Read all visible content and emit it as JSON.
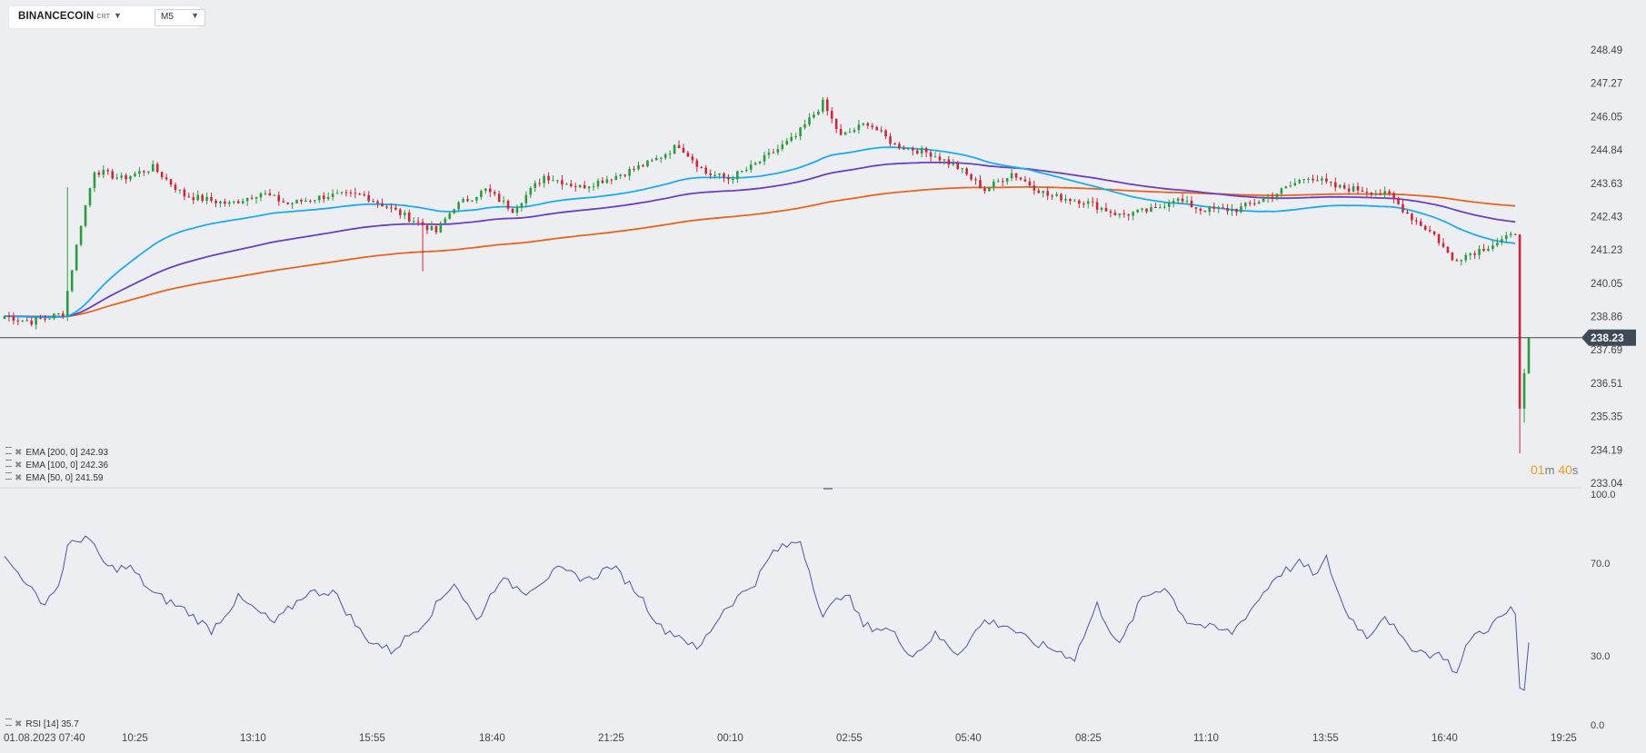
{
  "toolbar": {
    "symbol": "BINANCECOIN",
    "symbol_type": "CRT",
    "timeframe": "M5",
    "dropdown_icon": "caret-down-icon"
  },
  "countdown": {
    "minutes": "01",
    "min_unit": "m",
    "seconds": "40",
    "sec_unit": "s"
  },
  "indicators": [
    {
      "label": "EMA [200, 0]",
      "value": "242.93",
      "color": "#e8641f"
    },
    {
      "label": "EMA [100, 0]",
      "value": "242.36",
      "color": "#6a3fc0"
    },
    {
      "label": "EMA [50, 0]",
      "value": "241.59",
      "color": "#1eaaeb"
    }
  ],
  "rsi_legend": {
    "label": "RSI [14]",
    "value": "35.7",
    "color": "#4a55a8"
  },
  "colors": {
    "up": "#2e9b3e",
    "down": "#c8283a",
    "background": "#eceef1",
    "price_badge": "#3e4a55"
  },
  "chart_data": [
    {
      "type": "candlestick",
      "title": "",
      "ylim": [
        233.04,
        248.49
      ],
      "y_ticks": [
        "248.49",
        "247.27",
        "246.05",
        "244.84",
        "243.63",
        "242.43",
        "241.23",
        "240.05",
        "238.86",
        "237.69",
        "236.51",
        "235.35",
        "234.19",
        "233.04"
      ],
      "x_ticks": [
        "01.08.2023  07:40",
        "10:25",
        "13:10",
        "15:55",
        "18:40",
        "21:25",
        "00:10",
        "02:55",
        "05:40",
        "08:25",
        "11:10",
        "13:55",
        "16:40",
        "19:25"
      ],
      "current_price": "238.23",
      "ohlc_anchors": [
        {
          "t": 0,
          "c": 239.0
        },
        {
          "t": 6,
          "c": 238.8
        },
        {
          "t": 13,
          "c": 239.1
        },
        {
          "t": 17,
          "c": 242.3
        },
        {
          "t": 20,
          "c": 244.2
        },
        {
          "t": 26,
          "c": 243.9
        },
        {
          "t": 33,
          "c": 244.3
        },
        {
          "t": 40,
          "c": 243.3
        },
        {
          "t": 50,
          "c": 243.0
        },
        {
          "t": 57,
          "c": 243.4
        },
        {
          "t": 63,
          "c": 243.0
        },
        {
          "t": 72,
          "c": 243.3
        },
        {
          "t": 80,
          "c": 243.3
        },
        {
          "t": 90,
          "c": 242.5
        },
        {
          "t": 96,
          "c": 242.0
        },
        {
          "t": 100,
          "c": 242.9
        },
        {
          "t": 107,
          "c": 243.5
        },
        {
          "t": 113,
          "c": 242.8
        },
        {
          "t": 120,
          "c": 244.0
        },
        {
          "t": 128,
          "c": 243.6
        },
        {
          "t": 136,
          "c": 244.0
        },
        {
          "t": 144,
          "c": 244.5
        },
        {
          "t": 150,
          "c": 245.1
        },
        {
          "t": 156,
          "c": 244.1
        },
        {
          "t": 161,
          "c": 243.9
        },
        {
          "t": 166,
          "c": 244.3
        },
        {
          "t": 176,
          "c": 245.4
        },
        {
          "t": 182,
          "c": 246.6
        },
        {
          "t": 186,
          "c": 245.4
        },
        {
          "t": 192,
          "c": 245.9
        },
        {
          "t": 198,
          "c": 245.1
        },
        {
          "t": 206,
          "c": 244.8
        },
        {
          "t": 212,
          "c": 244.3
        },
        {
          "t": 218,
          "c": 243.5
        },
        {
          "t": 224,
          "c": 244.1
        },
        {
          "t": 232,
          "c": 243.3
        },
        {
          "t": 240,
          "c": 243.1
        },
        {
          "t": 248,
          "c": 242.6
        },
        {
          "t": 256,
          "c": 242.8
        },
        {
          "t": 260,
          "c": 243.2
        },
        {
          "t": 266,
          "c": 242.8
        },
        {
          "t": 274,
          "c": 242.8
        },
        {
          "t": 282,
          "c": 243.3
        },
        {
          "t": 290,
          "c": 244.0
        },
        {
          "t": 296,
          "c": 243.6
        },
        {
          "t": 302,
          "c": 243.5
        },
        {
          "t": 308,
          "c": 243.3
        },
        {
          "t": 313,
          "c": 242.5
        },
        {
          "t": 318,
          "c": 241.9
        },
        {
          "t": 322,
          "c": 241.0
        },
        {
          "t": 327,
          "c": 241.3
        },
        {
          "t": 333,
          "c": 241.7
        },
        {
          "t": 336,
          "c": 241.9
        },
        {
          "t": 337,
          "c": 235.7
        },
        {
          "t": 339,
          "c": 238.23
        }
      ],
      "ema_200_end": 242.93,
      "ema_100_end": 242.36,
      "ema_50_end": 241.59
    },
    {
      "type": "line",
      "title": "",
      "series": [
        {
          "name": "RSI [14]",
          "values": []
        }
      ],
      "ylim": [
        0,
        100
      ],
      "y_ticks": [
        "100.0",
        "70.0",
        "30.0",
        "0.0"
      ],
      "rsi_anchors": [
        {
          "t": 0,
          "v": 72
        },
        {
          "t": 5,
          "v": 62
        },
        {
          "t": 8,
          "v": 52
        },
        {
          "t": 12,
          "v": 60
        },
        {
          "t": 14,
          "v": 77
        },
        {
          "t": 18,
          "v": 82
        },
        {
          "t": 23,
          "v": 68
        },
        {
          "t": 28,
          "v": 68
        },
        {
          "t": 33,
          "v": 57
        },
        {
          "t": 40,
          "v": 50
        },
        {
          "t": 46,
          "v": 41
        },
        {
          "t": 52,
          "v": 55
        },
        {
          "t": 60,
          "v": 44
        },
        {
          "t": 67,
          "v": 57
        },
        {
          "t": 73,
          "v": 58
        },
        {
          "t": 80,
          "v": 38
        },
        {
          "t": 86,
          "v": 32
        },
        {
          "t": 93,
          "v": 44
        },
        {
          "t": 100,
          "v": 62
        },
        {
          "t": 105,
          "v": 45
        },
        {
          "t": 110,
          "v": 63
        },
        {
          "t": 116,
          "v": 58
        },
        {
          "t": 123,
          "v": 67
        },
        {
          "t": 130,
          "v": 63
        },
        {
          "t": 135,
          "v": 69
        },
        {
          "t": 141,
          "v": 57
        },
        {
          "t": 146,
          "v": 42
        },
        {
          "t": 151,
          "v": 38
        },
        {
          "t": 154,
          "v": 32
        },
        {
          "t": 160,
          "v": 50
        },
        {
          "t": 167,
          "v": 62
        },
        {
          "t": 171,
          "v": 75
        },
        {
          "t": 177,
          "v": 80
        },
        {
          "t": 182,
          "v": 47
        },
        {
          "t": 187,
          "v": 58
        },
        {
          "t": 191,
          "v": 43
        },
        {
          "t": 197,
          "v": 41
        },
        {
          "t": 202,
          "v": 30
        },
        {
          "t": 207,
          "v": 39
        },
        {
          "t": 212,
          "v": 31
        },
        {
          "t": 218,
          "v": 45
        },
        {
          "t": 223,
          "v": 43
        },
        {
          "t": 228,
          "v": 36
        },
        {
          "t": 233,
          "v": 33
        },
        {
          "t": 238,
          "v": 29
        },
        {
          "t": 243,
          "v": 52
        },
        {
          "t": 248,
          "v": 34
        },
        {
          "t": 253,
          "v": 55
        },
        {
          "t": 258,
          "v": 60
        },
        {
          "t": 263,
          "v": 45
        },
        {
          "t": 268,
          "v": 42
        },
        {
          "t": 273,
          "v": 40
        },
        {
          "t": 278,
          "v": 52
        },
        {
          "t": 283,
          "v": 65
        },
        {
          "t": 288,
          "v": 70
        },
        {
          "t": 292,
          "v": 65
        },
        {
          "t": 294,
          "v": 72
        },
        {
          "t": 298,
          "v": 50
        },
        {
          "t": 303,
          "v": 38
        },
        {
          "t": 307,
          "v": 48
        },
        {
          "t": 311,
          "v": 36
        },
        {
          "t": 316,
          "v": 31
        },
        {
          "t": 320,
          "v": 30
        },
        {
          "t": 323,
          "v": 22
        },
        {
          "t": 326,
          "v": 38
        },
        {
          "t": 330,
          "v": 42
        },
        {
          "t": 335,
          "v": 50
        },
        {
          "t": 336,
          "v": 48
        },
        {
          "t": 337,
          "v": 16
        },
        {
          "t": 338,
          "v": 15
        },
        {
          "t": 339,
          "v": 35.7
        }
      ]
    }
  ]
}
